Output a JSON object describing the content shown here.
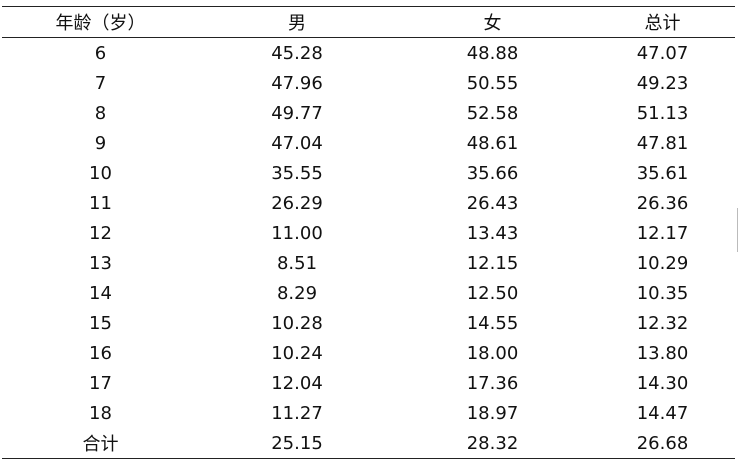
{
  "table": {
    "headers": [
      "年龄（岁）",
      "男",
      "女",
      "总计"
    ],
    "rows": [
      [
        "6",
        "45.28",
        "48.88",
        "47.07"
      ],
      [
        "7",
        "47.96",
        "50.55",
        "49.23"
      ],
      [
        "8",
        "49.77",
        "52.58",
        "51.13"
      ],
      [
        "9",
        "47.04",
        "48.61",
        "47.81"
      ],
      [
        "10",
        "35.55",
        "35.66",
        "35.61"
      ],
      [
        "11",
        "26.29",
        "26.43",
        "26.36"
      ],
      [
        "12",
        "11.00",
        "13.43",
        "12.17"
      ],
      [
        "13",
        "8.51",
        "12.15",
        "10.29"
      ],
      [
        "14",
        "8.29",
        "12.50",
        "10.35"
      ],
      [
        "15",
        "10.28",
        "14.55",
        "12.32"
      ],
      [
        "16",
        "10.24",
        "18.00",
        "13.80"
      ],
      [
        "17",
        "12.04",
        "17.36",
        "14.30"
      ],
      [
        "18",
        "11.27",
        "18.97",
        "14.47"
      ],
      [
        "合计",
        "25.15",
        "28.32",
        "26.68"
      ]
    ]
  }
}
